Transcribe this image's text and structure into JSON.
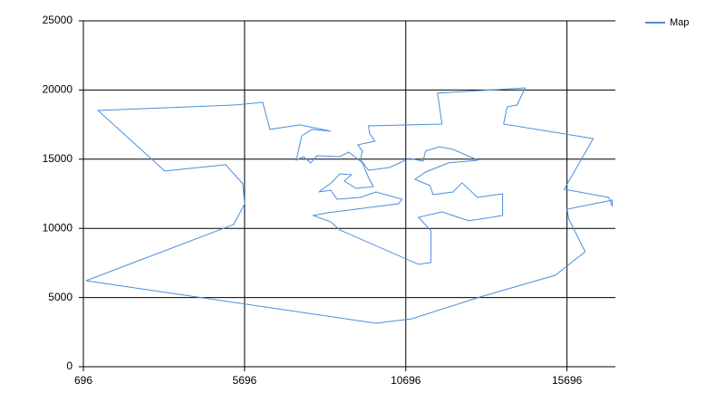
{
  "chart_data": {
    "type": "line",
    "x": [
      780,
      9770,
      10890,
      13000,
      15330,
      16260,
      15750,
      15700,
      17100,
      17100,
      16990,
      15610,
      16510,
      13730,
      13840,
      14150,
      14400,
      11680,
      11820,
      9540,
      9570,
      9740,
      9210,
      9350,
      9290,
      9540,
      10190,
      10810,
      11230,
      11310,
      11740,
      12160,
      12940,
      12020,
      11310,
      10980,
      11450,
      11540,
      12160,
      12440,
      12920,
      13700,
      13700,
      12660,
      11820,
      11090,
      11480,
      11480,
      11090,
      8650,
      8370,
      7830,
      8280,
      10470,
      10580,
      9770,
      9290,
      8560,
      8370,
      8000,
      8390,
      8650,
      9010,
      8790,
      9150,
      9690,
      9540,
      9350,
      8930,
      8650,
      7940,
      7750,
      7520,
      7300,
      7470,
      7780,
      8370,
      7410,
      6480,
      6260,
      5420,
      1150,
      3220,
      5110,
      5640,
      5700,
      5360,
      780
    ],
    "series": [
      {
        "name": "Map",
        "color": "#4a8fdc",
        "values": [
          6220,
          3140,
          3470,
          5040,
          6610,
          8310,
          10670,
          11390,
          12040,
          11590,
          12240,
          12830,
          16490,
          17540,
          18780,
          18920,
          20160,
          19770,
          17540,
          17410,
          16890,
          16300,
          16040,
          15580,
          14990,
          14200,
          14400,
          15050,
          14860,
          15580,
          15900,
          15710,
          14920,
          14730,
          14070,
          13550,
          13090,
          12440,
          12630,
          13290,
          12240,
          12500,
          10930,
          10540,
          11190,
          10800,
          9820,
          7530,
          7400,
          9880,
          10470,
          10930,
          11130,
          11780,
          12110,
          12630,
          12240,
          12110,
          12760,
          12630,
          13290,
          13940,
          13880,
          13420,
          12890,
          13020,
          13680,
          14730,
          15510,
          15180,
          15250,
          14730,
          15180,
          14920,
          16690,
          17150,
          17020,
          17480,
          17150,
          19110,
          18920,
          18520,
          14140,
          14600,
          13220,
          11780,
          10280,
          6220
        ]
      }
    ],
    "xlim": [
      696,
      17196
    ],
    "xticks": [
      696,
      5696,
      10696,
      15696
    ],
    "ylim": [
      0,
      25000
    ],
    "yticks": [
      0,
      5000,
      10000,
      15000,
      20000,
      25000
    ],
    "grid": true,
    "legend": "top-right"
  }
}
